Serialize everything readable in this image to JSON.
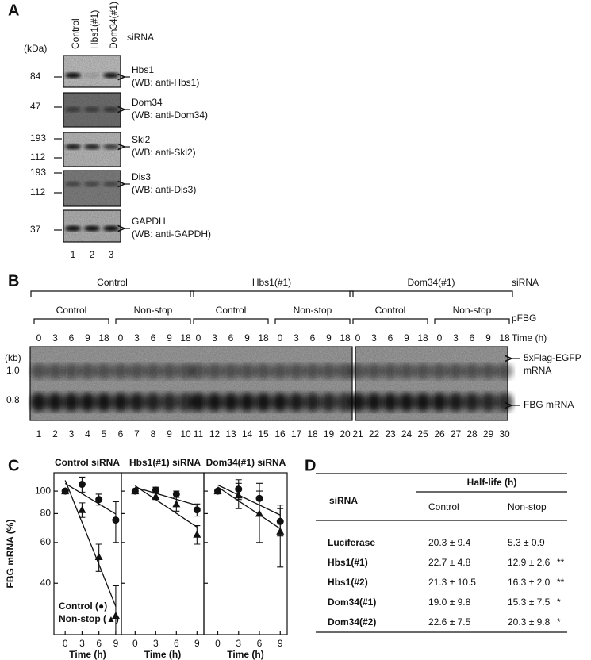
{
  "panel_a": {
    "label": "A",
    "lanes": [
      "Control",
      "Hbs1(#1)",
      "Dom34(#1)"
    ],
    "lane_header": "siRNA",
    "unit": "(kDa)",
    "blots": [
      {
        "markers": [
          84
        ],
        "name": "Hbs1",
        "antibody": "(WB: anti-Hbs1)"
      },
      {
        "markers": [
          47
        ],
        "name": "Dom34",
        "antibody": "(WB: anti-Dom34)"
      },
      {
        "markers": [
          193,
          112
        ],
        "name": "Ski2",
        "antibody": "(WB: anti-Ski2)"
      },
      {
        "markers": [
          193,
          112
        ],
        "name": "Dis3",
        "antibody": "(WB: anti-Dis3)"
      },
      {
        "markers": [
          37
        ],
        "name": "GAPDH",
        "antibody": "(WB: anti-GAPDH)"
      }
    ],
    "lane_numbers": [
      1,
      2,
      3
    ]
  },
  "panel_b": {
    "label": "B",
    "group_header": "siRNA",
    "subgroup_header": "pFBG",
    "time_header": "Time (h)",
    "unit": "(kb)",
    "groups": [
      {
        "name": "Control",
        "subgroups": [
          {
            "name": "Control",
            "times": [
              0,
              3,
              6,
              9,
              18
            ]
          },
          {
            "name": "Non-stop",
            "times": [
              0,
              3,
              6,
              9,
              18
            ]
          }
        ]
      },
      {
        "name": "Hbs1(#1)",
        "subgroups": [
          {
            "name": "Control",
            "times": [
              0,
              3,
              6,
              9,
              18
            ]
          },
          {
            "name": "Non-stop",
            "times": [
              0,
              3,
              6,
              9,
              18
            ]
          }
        ]
      },
      {
        "name": "Dom34(#1)",
        "subgroups": [
          {
            "name": "Control",
            "times": [
              0,
              3,
              6,
              9,
              18
            ]
          },
          {
            "name": "Non-stop",
            "times": [
              0,
              3,
              6,
              9,
              18
            ]
          }
        ]
      }
    ],
    "markers": [
      "1.0",
      "0.8"
    ],
    "band_labels": [
      [
        "5xFlag-EGFP",
        "mRNA"
      ],
      [
        "FBG mRNA"
      ]
    ],
    "lane_numbers": [
      1,
      2,
      3,
      4,
      5,
      6,
      7,
      8,
      9,
      10,
      11,
      12,
      13,
      14,
      15,
      16,
      17,
      18,
      19,
      20,
      21,
      22,
      23,
      24,
      25,
      26,
      27,
      28,
      29,
      30
    ]
  },
  "panel_c_label": "C",
  "chart_data": [
    {
      "type": "line",
      "title": "Control siRNA",
      "ylabel": "FBG mRNA (%)",
      "xlabel": "Time (h)",
      "x": [
        0,
        3,
        6,
        9
      ],
      "xlim": [
        -2,
        10
      ],
      "xticks": [
        0,
        3,
        6,
        9
      ],
      "ylim": [
        24,
        120
      ],
      "yticks": [
        40,
        60,
        80,
        100
      ],
      "log_scale": true,
      "legend": "lower left",
      "series": [
        {
          "name": "Control (●)",
          "marker": "circle",
          "color": "#111111",
          "values": [
            100,
            107,
            92,
            75
          ],
          "errors": [
            0,
            8,
            5,
            15
          ]
        },
        {
          "name": "Non-stop (▲)",
          "marker": "triangle",
          "color": "#111111",
          "values": [
            100,
            83,
            52,
            29
          ],
          "errors": [
            0,
            6,
            7,
            10
          ]
        }
      ]
    },
    {
      "type": "line",
      "title": "Hbs1(#1) siRNA",
      "xlabel": "Time (h)",
      "x": [
        0,
        3,
        6,
        9
      ],
      "xlim": [
        -2,
        10
      ],
      "xticks": [
        0,
        3,
        6,
        9
      ],
      "ylim": [
        24,
        120
      ],
      "yticks": [
        40,
        60,
        80,
        100
      ],
      "log_scale": true,
      "series": [
        {
          "marker": "circle",
          "color": "#111111",
          "values": [
            100,
            101,
            97,
            83
          ],
          "errors": [
            0,
            3,
            3,
            5
          ]
        },
        {
          "marker": "triangle",
          "color": "#111111",
          "values": [
            100,
            95,
            88,
            65
          ],
          "errors": [
            0,
            3,
            6,
            6
          ]
        }
      ]
    },
    {
      "type": "line",
      "title": "Dom34(#1) siRNA",
      "xlabel": "Time (h)",
      "x": [
        0,
        3,
        6,
        9
      ],
      "xlim": [
        -2,
        10
      ],
      "xticks": [
        0,
        3,
        6,
        9
      ],
      "ylim": [
        24,
        120
      ],
      "yticks": [
        40,
        60,
        80,
        100
      ],
      "log_scale": true,
      "series": [
        {
          "marker": "circle",
          "color": "#111111",
          "values": [
            100,
            102,
            93,
            74
          ],
          "errors": [
            0,
            10,
            15,
            10
          ]
        },
        {
          "marker": "triangle",
          "color": "#111111",
          "values": [
            100,
            96,
            80,
            67
          ],
          "errors": [
            0,
            12,
            20,
            20
          ]
        }
      ]
    }
  ],
  "panel_d": {
    "label": "D",
    "header": {
      "first": "siRNA",
      "group": "Half-life (h)",
      "columns": [
        "Control",
        "Non-stop"
      ]
    },
    "rows": [
      {
        "name": "Luciferase",
        "control": "20.3 ± 9.4",
        "nonstop": "5.3 ± 0.9"
      },
      {
        "name": "Hbs1(#1)",
        "control": "22.7 ± 4.8",
        "nonstop": "12.9 ± 2.6",
        "sig": "**"
      },
      {
        "name": "Hbs1(#2)",
        "control": "21.3 ± 10.5",
        "nonstop": "16.3 ± 2.0",
        "sig": "**"
      },
      {
        "name": "Dom34(#1)",
        "control": "19.0 ± 9.8",
        "nonstop": "15.3 ± 7.5",
        "sig": "*"
      },
      {
        "name": "Dom34(#2)",
        "control": "22.6 ± 7.5",
        "nonstop": "20.3 ± 9.8",
        "sig": "*"
      }
    ]
  }
}
